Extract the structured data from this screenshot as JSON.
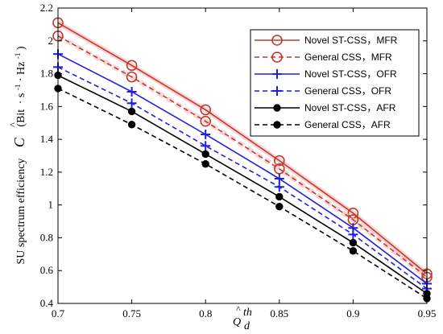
{
  "chart_data": {
    "type": "line",
    "x": [
      0.7,
      0.75,
      0.8,
      0.85,
      0.9,
      0.95
    ],
    "xlim": [
      0.7,
      0.95
    ],
    "ylim": [
      0.4,
      2.2
    ],
    "x_ticks": [
      "0.7",
      "0.75",
      "0.8",
      "0.85",
      "0.9",
      "0.95"
    ],
    "y_ticks": [
      "0.4",
      "0.6",
      "0.8",
      "1",
      "1.2",
      "1.4",
      "1.6",
      "1.8",
      "2",
      "2.2"
    ],
    "ylabel": {
      "prefix": "SU spectrum efficiency",
      "symbol": "C",
      "units_open": "(Bit",
      "units_s": "s",
      "units_hz": "Hz",
      "units_close": ")"
    },
    "xlabel": {
      "symbol": "Q",
      "subscript": "d",
      "superscript": "th"
    },
    "grid": false,
    "legend_position": "top-right",
    "series": [
      {
        "name": "Novel ST-CSS，MFR",
        "color": "#c0392b",
        "style": "solid",
        "marker": "circle-open",
        "values": [
          2.11,
          1.85,
          1.58,
          1.27,
          0.95,
          0.58
        ]
      },
      {
        "name": "General CSS，MFR",
        "color": "#c0392b",
        "style": "dashed",
        "marker": "circle-open",
        "values": [
          2.03,
          1.78,
          1.51,
          1.22,
          0.91,
          0.56
        ]
      },
      {
        "name": "Novel ST-CSS，OFR",
        "color": "#1f1fe0",
        "style": "solid",
        "marker": "plus",
        "values": [
          1.92,
          1.69,
          1.43,
          1.16,
          0.86,
          0.52
        ]
      },
      {
        "name": "General CSS，OFR",
        "color": "#1f1fe0",
        "style": "dashed",
        "marker": "plus",
        "values": [
          1.84,
          1.62,
          1.36,
          1.11,
          0.82,
          0.49
        ]
      },
      {
        "name": "Novel ST-CSS，AFR",
        "color": "#000000",
        "style": "solid",
        "marker": "dot",
        "values": [
          1.79,
          1.57,
          1.31,
          1.05,
          0.77,
          0.46
        ]
      },
      {
        "name": "General CSS，AFR",
        "color": "#000000",
        "style": "dashed",
        "marker": "dot",
        "values": [
          1.71,
          1.49,
          1.25,
          0.99,
          0.72,
          0.43
        ]
      }
    ]
  }
}
